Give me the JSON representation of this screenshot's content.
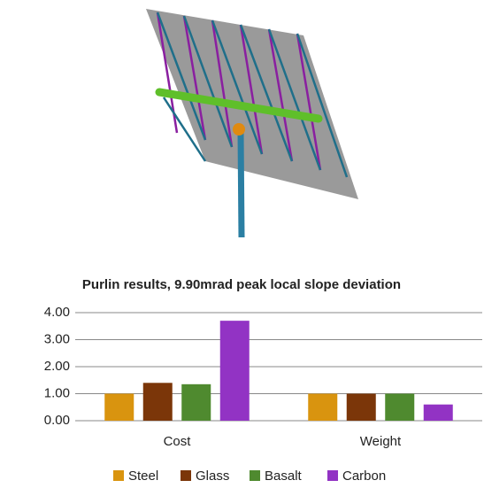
{
  "chart_data": {
    "type": "bar",
    "title": "Purlin results, 9.90mrad peak local slope deviation",
    "categories": [
      "Cost",
      "Weight"
    ],
    "series": [
      {
        "name": "Steel",
        "color": "#d9940f",
        "values": [
          1.0,
          1.0
        ]
      },
      {
        "name": "Glass",
        "color": "#7b3609",
        "values": [
          1.4,
          1.0
        ]
      },
      {
        "name": "Basalt",
        "color": "#4f8a2f",
        "values": [
          1.35,
          1.0
        ]
      },
      {
        "name": "Carbon",
        "color": "#9233c4",
        "values": [
          3.7,
          0.6
        ]
      }
    ],
    "ylim": [
      0,
      4
    ],
    "yticks": [
      {
        "value": 0,
        "label": "0.00"
      },
      {
        "value": 1,
        "label": "1.00"
      },
      {
        "value": 2,
        "label": "2.00"
      },
      {
        "value": 3,
        "label": "3.00"
      },
      {
        "value": 4,
        "label": "4.00"
      }
    ],
    "grid": true
  }
}
